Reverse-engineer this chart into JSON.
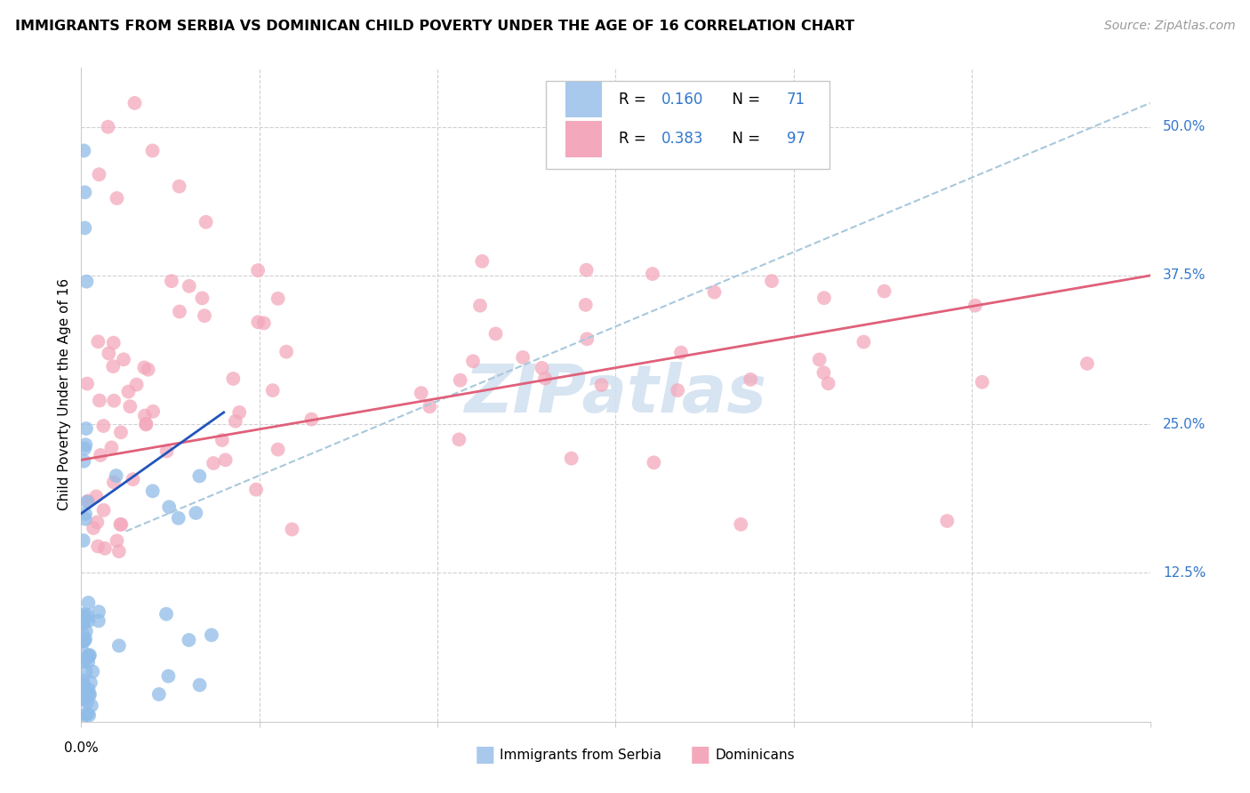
{
  "title": "IMMIGRANTS FROM SERBIA VS DOMINICAN CHILD POVERTY UNDER THE AGE OF 16 CORRELATION CHART",
  "source": "Source: ZipAtlas.com",
  "ylabel": "Child Poverty Under the Age of 16",
  "ytick_vals": [
    0.125,
    0.25,
    0.375,
    0.5
  ],
  "ytick_labels": [
    "12.5%",
    "25.0%",
    "37.5%",
    "50.0%"
  ],
  "xlim": [
    0.0,
    0.6
  ],
  "ylim": [
    0.0,
    0.55
  ],
  "serbia_color": "#90bce8",
  "dominican_color": "#f4a8bc",
  "serbia_line_color": "#2255bb",
  "dominican_line_color": "#e0607a",
  "dashed_color": "#a8c8dc",
  "watermark_color": "#d0e0f0",
  "r_serbia": "0.160",
  "n_serbia": "71",
  "r_dominican": "0.383",
  "n_dominican": "97",
  "bottom_label1": "Immigrants from Serbia",
  "bottom_label2": "Dominicans",
  "serbia_trend_x": [
    0.0,
    0.08
  ],
  "serbia_trend_y": [
    0.175,
    0.26
  ],
  "dominican_trend_x": [
    0.0,
    0.6
  ],
  "dominican_trend_y": [
    0.22,
    0.375
  ],
  "dashed_trend_x": [
    0.025,
    0.6
  ],
  "dashed_trend_y": [
    0.16,
    0.52
  ],
  "xtick_minor": [
    0.1,
    0.2,
    0.3,
    0.4,
    0.5
  ],
  "title_fontsize": 11.5,
  "source_fontsize": 10,
  "axis_label_fontsize": 11,
  "ylabel_fontsize": 11
}
